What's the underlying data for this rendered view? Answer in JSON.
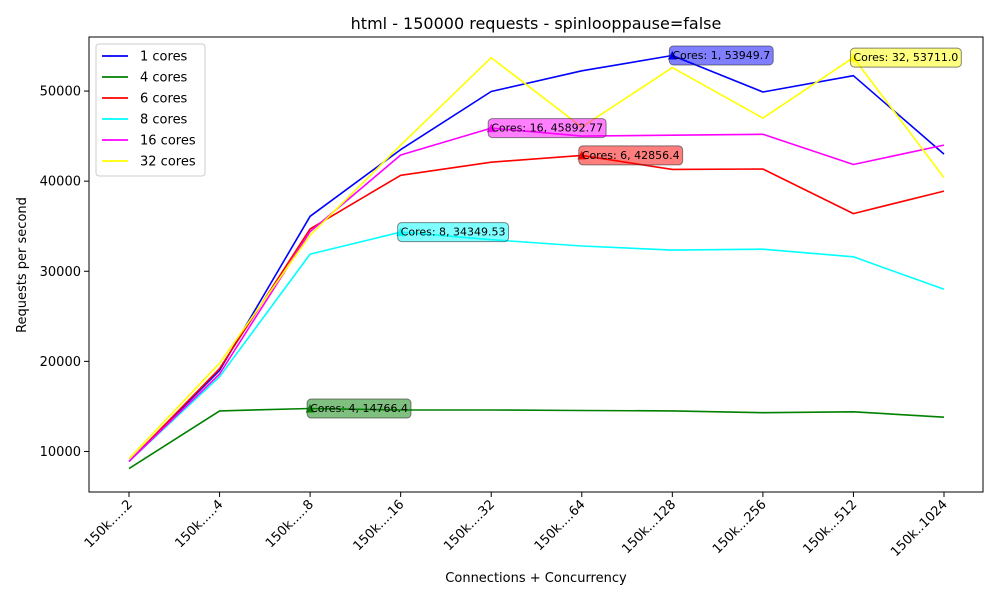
{
  "chart_data": {
    "type": "line",
    "title": "html - 150000 requests - spinlooppause=false",
    "xlabel": "Connections + Concurrency",
    "ylabel": "Requests per second",
    "categories": [
      "150k.....2",
      "150k.....4",
      "150k.....8",
      "150k....16",
      "150k....32",
      "150k....64",
      "150k...128",
      "150k...256",
      "150k...512",
      "150k..1024"
    ],
    "ylim": [
      5500,
      56000
    ],
    "yticks": [
      10000,
      20000,
      30000,
      40000,
      50000
    ],
    "ytick_labels": [
      "10000",
      "20000",
      "30000",
      "40000",
      "50000"
    ],
    "grid": false,
    "legend_position": "upper left",
    "series": [
      {
        "name": "1 cores",
        "color": "#0000ff",
        "values": [
          8900,
          19000,
          36100,
          43500,
          49949,
          52250,
          53949.7,
          49900,
          51700,
          43000
        ],
        "peak_index": 6,
        "annotation": "Cores: 1, 53949.7"
      },
      {
        "name": "4 cores",
        "color": "#008000",
        "values": [
          8100,
          14500,
          14766.4,
          14600,
          14600,
          14550,
          14500,
          14300,
          14400,
          13800
        ],
        "peak_index": 2,
        "annotation": "Cores: 4, 14766.4"
      },
      {
        "name": "6 cores",
        "color": "#ff0000",
        "values": [
          8900,
          19200,
          34700,
          40650,
          42100,
          42856.4,
          41300,
          41350,
          36400,
          38900
        ],
        "peak_index": 5,
        "annotation": "Cores: 6, 42856.4"
      },
      {
        "name": "8 cores",
        "color": "#00ffff",
        "values": [
          8900,
          18300,
          31900,
          34349.53,
          33500,
          32800,
          32350,
          32450,
          31600,
          28000
        ],
        "peak_index": 3,
        "annotation": "Cores: 8, 34349.53"
      },
      {
        "name": "16 cores",
        "color": "#ff00ff",
        "values": [
          8900,
          18600,
          34400,
          42900,
          45892.77,
          45000,
          45100,
          45200,
          41850,
          44000
        ],
        "peak_index": 4,
        "annotation": "Cores: 16, 45892.77"
      },
      {
        "name": "32 cores",
        "color": "#ffff00",
        "values": [
          9200,
          19800,
          34000,
          44000,
          53700,
          46000,
          52600,
          47000,
          53711.0,
          40400
        ],
        "peak_index": 8,
        "annotation": "Cores: 32, 53711.0"
      }
    ]
  }
}
